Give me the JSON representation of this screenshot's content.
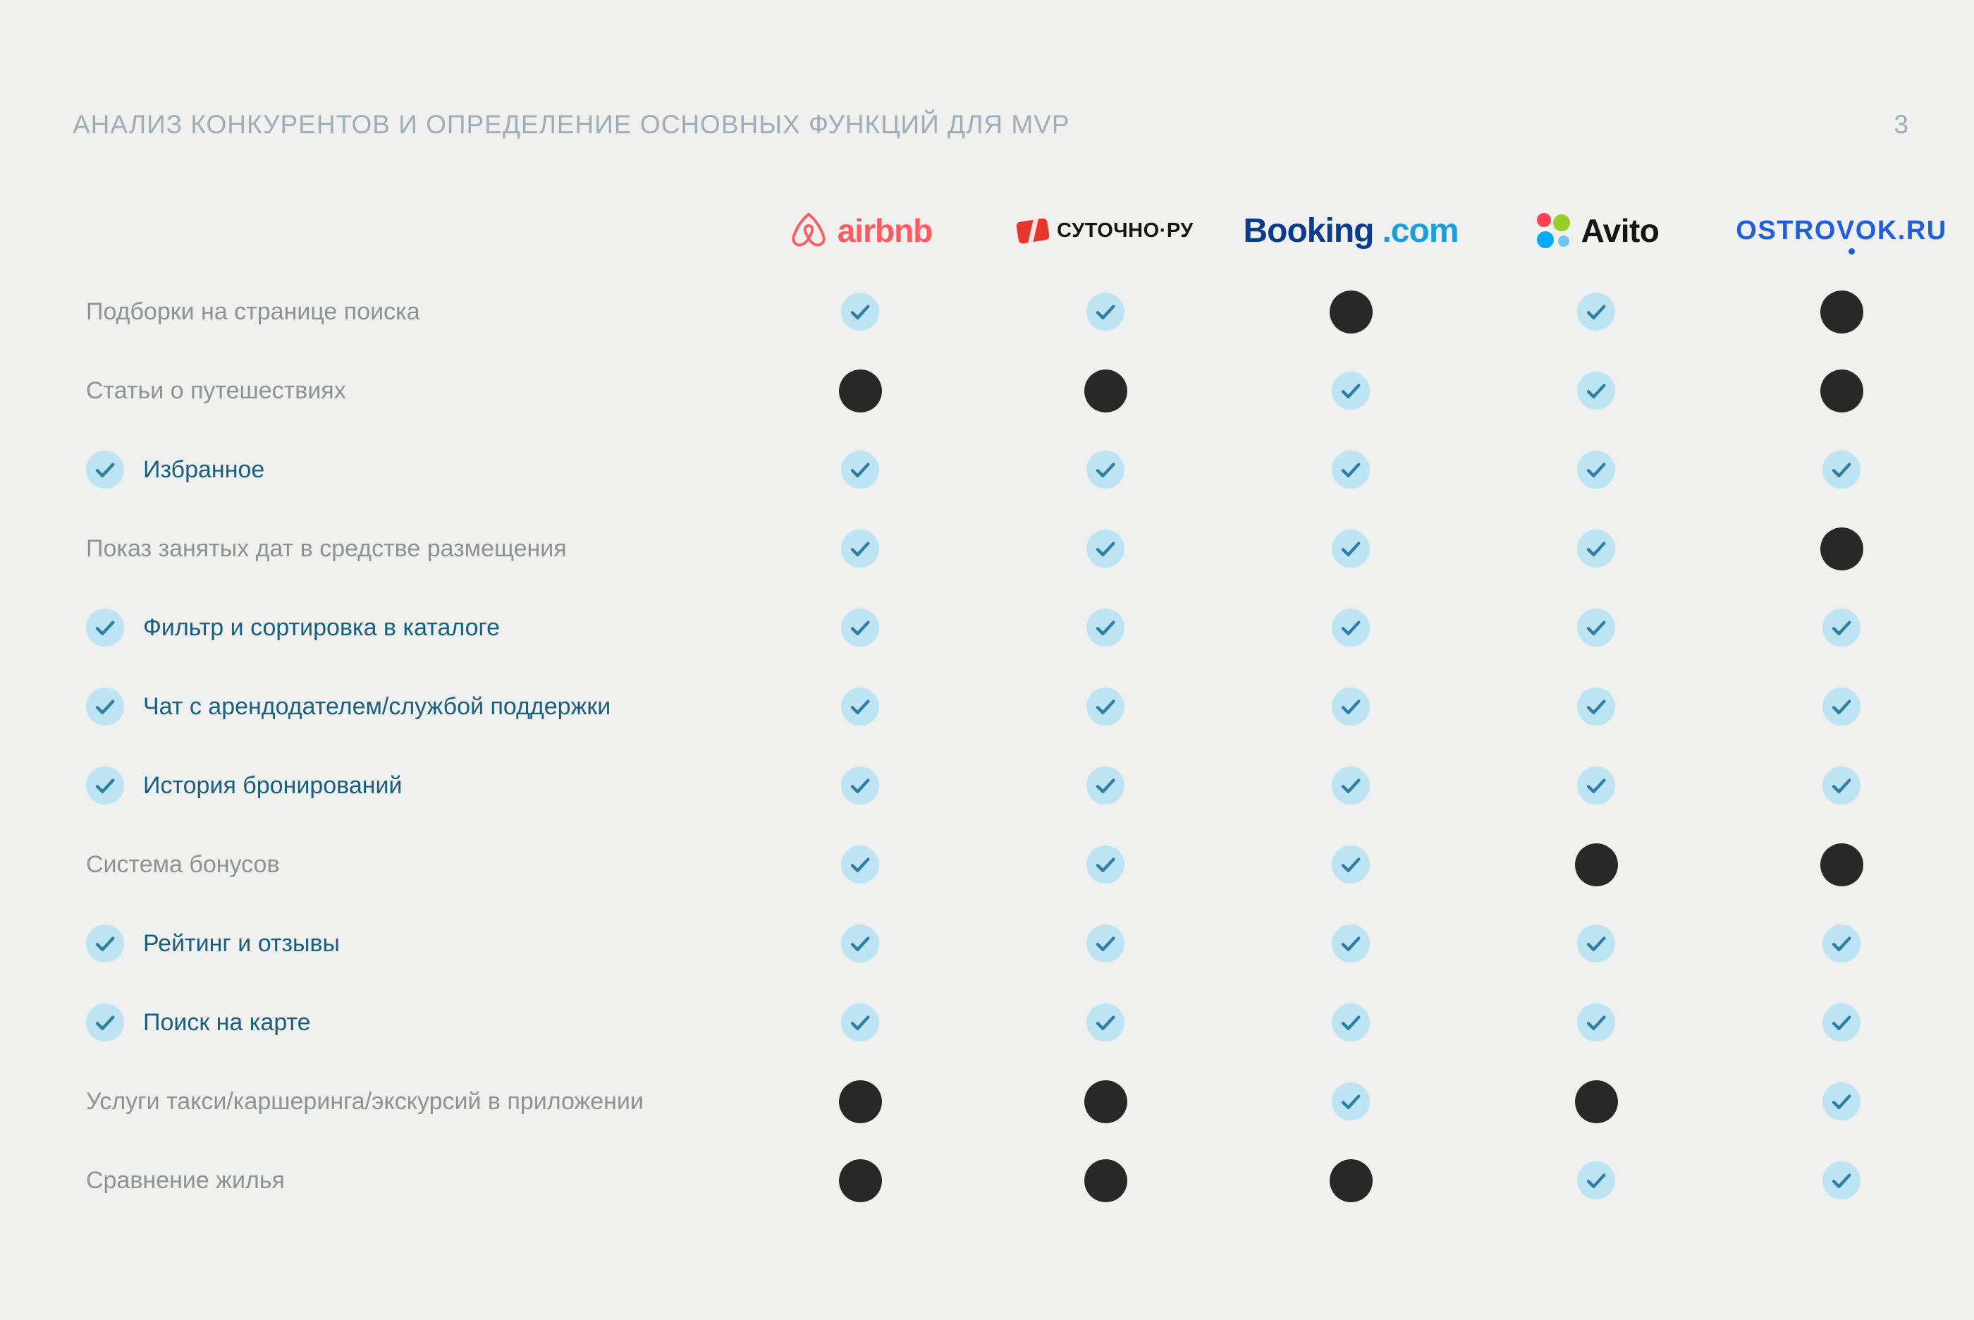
{
  "page": {
    "title": "АНАЛИЗ КОНКУРЕНТОВ И ОПРЕДЕЛЕНИЕ ОСНОВНЫХ ФУНКЦИЙ ДЛЯ MVP",
    "page_number": "3"
  },
  "colors": {
    "background": "#F0F0EE",
    "title": "#9FAEB6",
    "label_mvp": "#17607F",
    "label_default": "#8E9294",
    "check_circle": "#BDE4F2",
    "check_mark": "#2E7FA5",
    "absent_dot": "#282828"
  },
  "icons": {
    "present": "check-circle-icon",
    "absent": "filled-dot-icon"
  },
  "competitors": [
    {
      "id": "airbnb",
      "wordmark": "airbnb",
      "color": "#FF5A5F"
    },
    {
      "id": "sutochno",
      "wordmark": "СУТОЧНО·РУ",
      "icon_color": "#E8352B",
      "text_color": "#151515"
    },
    {
      "id": "booking",
      "wordmark_primary": "Booking",
      "wordmark_secondary": ".com",
      "primary_color": "#093C8D",
      "secondary_color": "#149FE4"
    },
    {
      "id": "avito",
      "wordmark": "Avito",
      "text_color": "#151515",
      "dot_colors": [
        "#FF4053",
        "#97CF26",
        "#00AAFF",
        "#6BC9F0"
      ]
    },
    {
      "id": "ostrovok",
      "wordmark": "OSTROVOK.RU",
      "color": "#1D5FE0"
    }
  ],
  "chart_data": {
    "type": "table",
    "title": "АНАЛИЗ КОНКУРЕНТОВ И ОПРЕДЕЛЕНИЕ ОСНОВНЫХ ФУНКЦИЙ ДЛЯ MVP",
    "columns": [
      "Airbnb",
      "Суточно.ру",
      "Booking.com",
      "Avito",
      "Ostrovok.ru"
    ],
    "value_meaning": {
      "true": "check-circle (feature present)",
      "false": "filled black dot (feature absent)"
    },
    "rows": [
      {
        "feature": "Подборки на  странице поиска",
        "in_mvp": false,
        "values": [
          true,
          true,
          false,
          true,
          false
        ]
      },
      {
        "feature": "Статьи о путешествиях",
        "in_mvp": false,
        "values": [
          false,
          false,
          true,
          true,
          false
        ]
      },
      {
        "feature": "Избранное",
        "in_mvp": true,
        "values": [
          true,
          true,
          true,
          true,
          true
        ]
      },
      {
        "feature": "Показ занятых дат в средстве размещения",
        "in_mvp": false,
        "values": [
          true,
          true,
          true,
          true,
          false
        ]
      },
      {
        "feature": "Фильтр и сортировка в каталоге",
        "in_mvp": true,
        "values": [
          true,
          true,
          true,
          true,
          true
        ]
      },
      {
        "feature": "Чат с арендодателем/службой поддержки",
        "in_mvp": true,
        "values": [
          true,
          true,
          true,
          true,
          true
        ]
      },
      {
        "feature": "История бронирований",
        "in_mvp": true,
        "values": [
          true,
          true,
          true,
          true,
          true
        ]
      },
      {
        "feature": "Система бонусов",
        "in_mvp": false,
        "values": [
          true,
          true,
          true,
          false,
          false
        ]
      },
      {
        "feature": "Рейтинг и отзывы",
        "in_mvp": true,
        "values": [
          true,
          true,
          true,
          true,
          true
        ]
      },
      {
        "feature": "Поиск на карте",
        "in_mvp": true,
        "values": [
          true,
          true,
          true,
          true,
          true
        ]
      },
      {
        "feature": "Услуги такси/каршеринга/экскурсий в приложении",
        "in_mvp": false,
        "values": [
          false,
          false,
          true,
          false,
          true
        ]
      },
      {
        "feature": "Сравнение жилья",
        "in_mvp": false,
        "values": [
          false,
          false,
          false,
          true,
          true
        ]
      }
    ]
  }
}
